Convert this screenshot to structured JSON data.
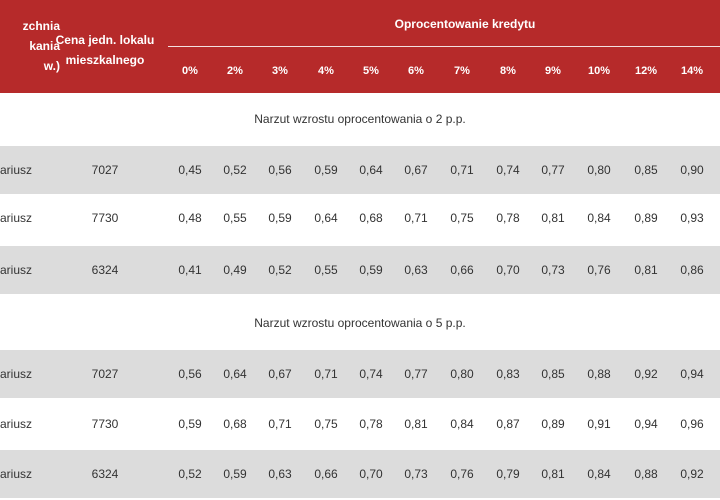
{
  "header": {
    "col0": "zchnia\nkania\nw.)",
    "col1": "Cena jedn. lokalu mieszkalnego",
    "group": "Oprocentowanie kredytu",
    "rates": [
      "0%",
      "2%",
      "3%",
      "4%",
      "5%",
      "6%",
      "7%",
      "8%",
      "9%",
      "10%",
      "12%",
      "14%"
    ]
  },
  "sections": [
    {
      "title": "Narzut wzrostu oprocentowania o 2 p.p.",
      "rows": [
        {
          "name": "ariusz",
          "price": "7027",
          "values": [
            "0,45",
            "0,52",
            "0,56",
            "0,59",
            "0,64",
            "0,67",
            "0,71",
            "0,74",
            "0,77",
            "0,80",
            "0,85",
            "0,90"
          ],
          "shaded": true
        },
        {
          "name": "ariusz",
          "price": "7730",
          "values": [
            "0,48",
            "0,55",
            "0,59",
            "0,64",
            "0,68",
            "0,71",
            "0,75",
            "0,78",
            "0,81",
            "0,84",
            "0,89",
            "0,93"
          ],
          "shaded": false
        },
        {
          "name": "ariusz",
          "price": "6324",
          "values": [
            "0,41",
            "0,49",
            "0,52",
            "0,55",
            "0,59",
            "0,63",
            "0,66",
            "0,70",
            "0,73",
            "0,76",
            "0,81",
            "0,86"
          ],
          "shaded": true
        }
      ]
    },
    {
      "title": "Narzut wzrostu oprocentowania o 5 p.p.",
      "rows": [
        {
          "name": "ariusz",
          "price": "7027",
          "values": [
            "0,56",
            "0,64",
            "0,67",
            "0,71",
            "0,74",
            "0,77",
            "0,80",
            "0,83",
            "0,85",
            "0,88",
            "0,92",
            "0,94"
          ],
          "shaded": true
        },
        {
          "name": "ariusz",
          "price": "7730",
          "values": [
            "0,59",
            "0,68",
            "0,71",
            "0,75",
            "0,78",
            "0,81",
            "0,84",
            "0,87",
            "0,89",
            "0,91",
            "0,94",
            "0,96"
          ],
          "shaded": false
        },
        {
          "name": "ariusz",
          "price": "6324",
          "values": [
            "0,52",
            "0,59",
            "0,63",
            "0,66",
            "0,70",
            "0,73",
            "0,76",
            "0,79",
            "0,81",
            "0,84",
            "0,88",
            "0,92"
          ],
          "shaded": true
        }
      ]
    }
  ],
  "colors": {
    "header_bg": "#b62a2a",
    "row_shade": "#dcdcdc",
    "text": "#333333"
  }
}
